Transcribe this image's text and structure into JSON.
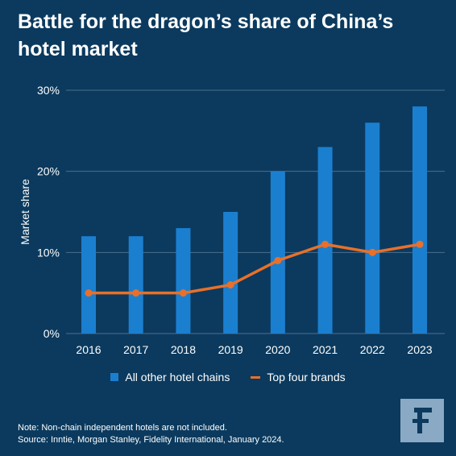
{
  "title": "Battle for the dragon’s share of China’s hotel market",
  "colors": {
    "background": "#0b3a5e",
    "bar": "#1b7fd0",
    "line": "#e8702a",
    "grid": "#4d6f8c",
    "logo_bg": "#8aa9c4"
  },
  "legend": {
    "bars_label": "All other hotel chains",
    "line_label": "Top four brands"
  },
  "note_line1": "Note: Non-chain independent hotels are not included.",
  "note_line2": "Source: Inntie, Morgan Stanley, Fidelity International, January 2024.",
  "logo_icon": "fidelity-f-logo-icon",
  "chart_data": {
    "type": "bar",
    "categories": [
      "2016",
      "2017",
      "2018",
      "2019",
      "2020",
      "2021",
      "2022",
      "2023"
    ],
    "series": [
      {
        "name": "All other hotel chains",
        "type": "bar",
        "values": [
          12,
          12,
          13,
          15,
          20,
          23,
          26,
          28
        ]
      },
      {
        "name": "Top four brands",
        "type": "line",
        "values": [
          5,
          5,
          5,
          6,
          9,
          11,
          10,
          11
        ]
      }
    ],
    "ylabel": "Market share",
    "ylim": [
      0,
      30
    ],
    "yticks": [
      0,
      10,
      20,
      30
    ],
    "ytick_labels": [
      "0%",
      "10%",
      "20%",
      "30%"
    ],
    "grid": true,
    "legend_position": "bottom"
  }
}
